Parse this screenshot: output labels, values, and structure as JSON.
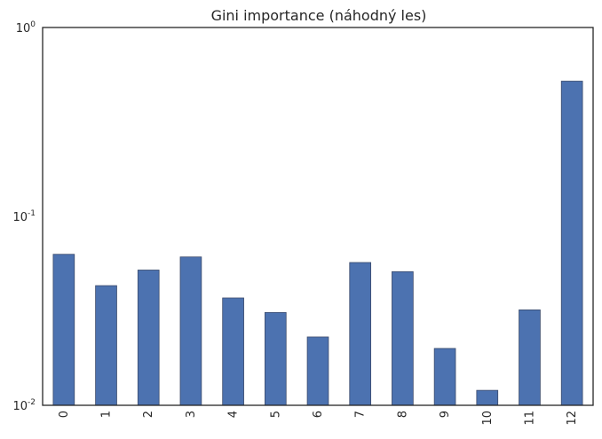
{
  "chart_data": {
    "type": "bar",
    "title": "Gini importance (náhodný les)",
    "xlabel": "",
    "ylabel": "",
    "yscale": "log",
    "ylim": [
      0.01,
      1
    ],
    "grid": false,
    "legend": "none",
    "bar_color": "#4c72b0",
    "categories": [
      "0",
      "1",
      "2",
      "3",
      "4",
      "5",
      "6",
      "7",
      "8",
      "9",
      "10",
      "11",
      "12"
    ],
    "values": [
      0.063,
      0.043,
      0.052,
      0.061,
      0.037,
      0.031,
      0.023,
      0.057,
      0.051,
      0.02,
      0.012,
      0.032,
      0.52
    ],
    "y_ticks": [
      {
        "base": "10",
        "exp": "-2",
        "value": 0.01
      },
      {
        "base": "10",
        "exp": "-1",
        "value": 0.1
      },
      {
        "base": "10",
        "exp": "0",
        "value": 1
      }
    ]
  }
}
